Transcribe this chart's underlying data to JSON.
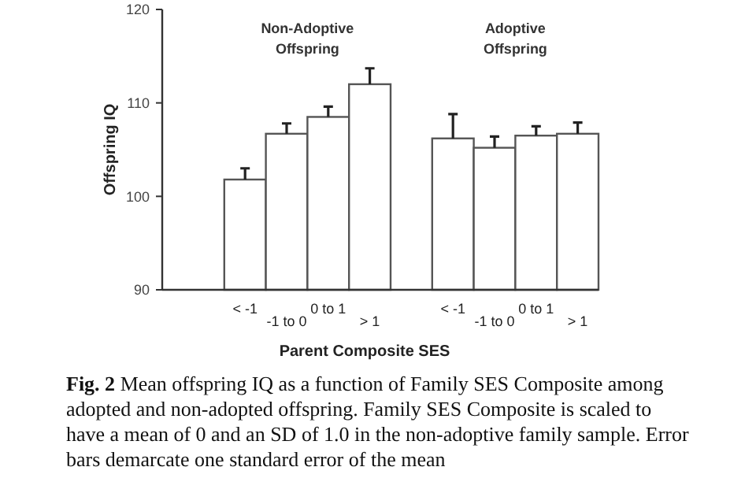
{
  "chart_data": {
    "type": "bar",
    "xlabel": "Parent Composite SES",
    "ylabel": "Offspring IQ",
    "categories": [
      null,
      "< -1",
      "-1 to 0",
      "0 to 1",
      "> 1",
      null,
      "< -1",
      "-1 to 0",
      "0 to 1",
      "> 1"
    ],
    "values": [
      null,
      101.8,
      106.7,
      108.5,
      112.0,
      null,
      106.2,
      105.2,
      106.5,
      106.7
    ],
    "errors": [
      null,
      [
        101.8,
        103.0
      ],
      [
        106.7,
        107.8
      ],
      [
        108.5,
        109.6
      ],
      [
        112.0,
        113.7
      ],
      null,
      [
        106.2,
        108.8
      ],
      [
        105.2,
        106.4
      ],
      [
        106.5,
        107.5
      ],
      [
        106.7,
        107.9
      ]
    ],
    "color": "#ffffff",
    "ylim": [
      90,
      120
    ],
    "yticks": [
      90,
      100,
      110,
      120
    ],
    "grid": false,
    "annotations": [
      "Non-Adoptive Offspring",
      "Adoptive Offspring",
      "Fig. 2 Mean offspring IQ as a function of Family SES Composite among adopted and non-adopted offspring. Family SES Composite is scaled to have a mean of 0 and an SD of 1.0 in the non-adoptive family sample. Error bars demarcate one standard error of the mean"
    ]
  }
}
